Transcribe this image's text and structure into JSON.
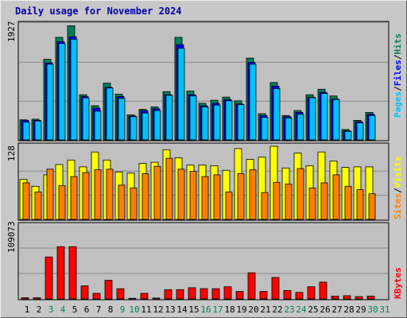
{
  "title": "Daily usage for November 2024",
  "colors": {
    "hits": "#00805c",
    "files": "#0000ff",
    "pages": "#00c0ff",
    "visits": "#ffff00",
    "sites": "#ff8000",
    "kbytes": "#ff0000",
    "weekend": "#00805c",
    "weekday": "#000000",
    "panel": "#c0c0c0"
  },
  "axis_labels": {
    "top_max": "1927",
    "mid_max": "128",
    "bottom_max": "109073"
  },
  "legend": {
    "top": [
      "Pages",
      "/",
      "Files",
      "/",
      "Hits"
    ],
    "mid": [
      "Sites",
      "/",
      "Visits"
    ],
    "bottom": [
      "KBytes"
    ]
  },
  "chart_data": [
    {
      "type": "bar",
      "title": "Daily usage for November 2024",
      "categories": [
        "1",
        "2",
        "3",
        "4",
        "5",
        "6",
        "7",
        "8",
        "9",
        "10",
        "11",
        "12",
        "13",
        "14",
        "15",
        "16",
        "17",
        "18",
        "19",
        "20",
        "21",
        "22",
        "23",
        "24",
        "25",
        "26",
        "27",
        "28",
        "29",
        "30",
        "31"
      ],
      "ylim": [
        0,
        1927
      ],
      "series": [
        {
          "name": "Hits",
          "values": [
            330,
            340,
            1320,
            1680,
            1870,
            740,
            560,
            930,
            750,
            410,
            500,
            540,
            790,
            1680,
            800,
            600,
            650,
            700,
            640,
            1340,
            430,
            940,
            400,
            480,
            740,
            830,
            720,
            170,
            320,
            450,
            0
          ]
        },
        {
          "name": "Files",
          "values": [
            320,
            320,
            1260,
            1610,
            1690,
            710,
            520,
            860,
            710,
            390,
            480,
            510,
            740,
            1560,
            740,
            560,
            600,
            660,
            590,
            1270,
            400,
            880,
            380,
            450,
            700,
            780,
            670,
            150,
            300,
            420,
            0
          ]
        },
        {
          "name": "Pages",
          "values": [
            290,
            310,
            1240,
            1580,
            1650,
            690,
            470,
            850,
            680,
            380,
            440,
            480,
            730,
            1500,
            720,
            540,
            570,
            640,
            580,
            1240,
            370,
            840,
            360,
            420,
            690,
            760,
            660,
            140,
            280,
            400,
            0
          ]
        }
      ]
    },
    {
      "type": "bar",
      "categories": [
        "1",
        "2",
        "3",
        "4",
        "5",
        "6",
        "7",
        "8",
        "9",
        "10",
        "11",
        "12",
        "13",
        "14",
        "15",
        "16",
        "17",
        "18",
        "19",
        "20",
        "21",
        "22",
        "23",
        "24",
        "25",
        "26",
        "27",
        "28",
        "29",
        "30",
        "31"
      ],
      "ylim": [
        0,
        128
      ],
      "series": [
        {
          "name": "Visits",
          "values": [
            70,
            58,
            78,
            96,
            104,
            92,
            118,
            104,
            83,
            81,
            98,
            100,
            122,
            108,
            95,
            95,
            94,
            86,
            124,
            105,
            109,
            128,
            90,
            116,
            94,
            118,
            102,
            91,
            92,
            92,
            0
          ]
        },
        {
          "name": "Sites",
          "values": [
            64,
            48,
            88,
            59,
            75,
            82,
            87,
            88,
            60,
            55,
            80,
            93,
            107,
            88,
            84,
            75,
            78,
            48,
            80,
            87,
            47,
            65,
            62,
            89,
            55,
            64,
            78,
            58,
            52,
            45,
            0
          ]
        }
      ]
    },
    {
      "type": "bar",
      "categories": [
        "1",
        "2",
        "3",
        "4",
        "5",
        "6",
        "7",
        "8",
        "9",
        "10",
        "11",
        "12",
        "13",
        "14",
        "15",
        "16",
        "17",
        "18",
        "19",
        "20",
        "21",
        "22",
        "23",
        "24",
        "25",
        "26",
        "27",
        "28",
        "29",
        "30",
        "31"
      ],
      "ylim": [
        0,
        109073
      ],
      "series": [
        {
          "name": "KBytes",
          "values": [
            0,
            0,
            90000,
            112000,
            112000,
            28000,
            12000,
            40000,
            22000,
            1200,
            12000,
            1800,
            20000,
            20000,
            24000,
            22000,
            22000,
            26000,
            16000,
            56000,
            16000,
            46000,
            18000,
            14000,
            26000,
            36000,
            6000,
            7000,
            5000,
            6000,
            0
          ]
        }
      ]
    }
  ],
  "x_labels": {
    "days": [
      "1",
      "2",
      "3",
      "4",
      "5",
      "6",
      "7",
      "8",
      "9",
      "10",
      "11",
      "12",
      "13",
      "14",
      "15",
      "16",
      "17",
      "18",
      "19",
      "20",
      "21",
      "22",
      "23",
      "24",
      "25",
      "26",
      "27",
      "28",
      "29",
      "30",
      "31"
    ],
    "weekend": [
      false,
      false,
      true,
      true,
      false,
      false,
      false,
      false,
      true,
      true,
      false,
      false,
      false,
      false,
      false,
      true,
      true,
      false,
      false,
      false,
      false,
      false,
      true,
      true,
      false,
      false,
      false,
      false,
      false,
      true,
      true
    ]
  }
}
